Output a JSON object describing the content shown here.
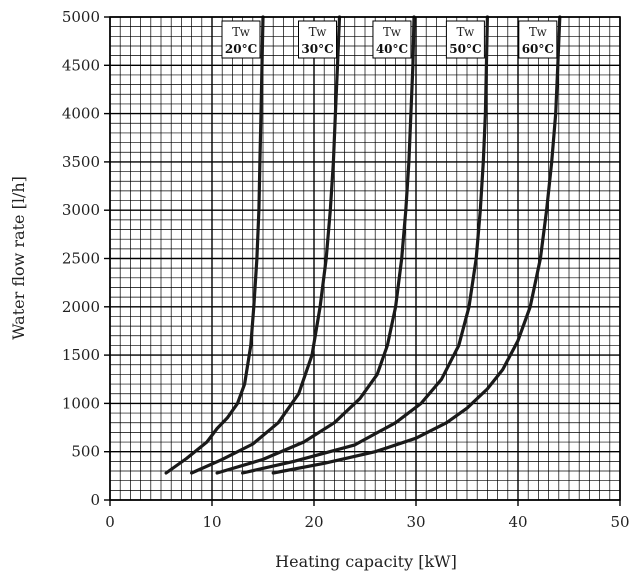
{
  "chart_data": {
    "type": "line",
    "xlabel": "Heating capacity [kW]",
    "ylabel": "Water flow rate [l/h]",
    "xlim": [
      0,
      50
    ],
    "ylim": [
      0,
      5000
    ],
    "x_ticks": [
      0,
      10,
      20,
      30,
      40,
      50
    ],
    "y_ticks": [
      0,
      500,
      1000,
      1500,
      2000,
      2500,
      3000,
      3500,
      4000,
      4500,
      5000
    ],
    "x_tick_labels": [
      "0",
      "10",
      "20",
      "30",
      "40",
      "50"
    ],
    "y_tick_labels": [
      "0",
      "500",
      "1000",
      "1500",
      "2000",
      "2500",
      "3000",
      "3500",
      "4000",
      "4500",
      "5000"
    ],
    "grid": true,
    "legend": "top, labels above each curve",
    "series": [
      {
        "label_top": "Tw",
        "label_bottom": "20°C",
        "points": [
          [
            5.5,
            280
          ],
          [
            7.5,
            430
          ],
          [
            9.5,
            600
          ],
          [
            10.5,
            740
          ],
          [
            11.5,
            850
          ],
          [
            12.5,
            1000
          ],
          [
            13.2,
            1200
          ],
          [
            13.8,
            1600
          ],
          [
            14.1,
            2000
          ],
          [
            14.4,
            2500
          ],
          [
            14.6,
            3000
          ],
          [
            14.7,
            3500
          ],
          [
            14.8,
            4000
          ],
          [
            14.9,
            4500
          ],
          [
            15.0,
            5000
          ]
        ]
      },
      {
        "label_top": "Tw",
        "label_bottom": "30°C",
        "points": [
          [
            8.0,
            280
          ],
          [
            11.0,
            420
          ],
          [
            14.0,
            580
          ],
          [
            16.5,
            800
          ],
          [
            18.5,
            1100
          ],
          [
            19.8,
            1500
          ],
          [
            20.6,
            2000
          ],
          [
            21.2,
            2500
          ],
          [
            21.6,
            3000
          ],
          [
            21.9,
            3500
          ],
          [
            22.1,
            4000
          ],
          [
            22.3,
            4500
          ],
          [
            22.5,
            5000
          ]
        ]
      },
      {
        "label_top": "Tw",
        "label_bottom": "40°C",
        "points": [
          [
            10.5,
            280
          ],
          [
            15.0,
            420
          ],
          [
            19.0,
            600
          ],
          [
            22.0,
            800
          ],
          [
            24.5,
            1050
          ],
          [
            26.2,
            1300
          ],
          [
            27.2,
            1600
          ],
          [
            28.0,
            2000
          ],
          [
            28.6,
            2500
          ],
          [
            29.0,
            3000
          ],
          [
            29.3,
            3500
          ],
          [
            29.5,
            4000
          ],
          [
            29.7,
            4500
          ],
          [
            29.8,
            5000
          ]
        ]
      },
      {
        "label_top": "Tw",
        "label_bottom": "50°C",
        "points": [
          [
            13.0,
            280
          ],
          [
            18.0,
            400
          ],
          [
            24.0,
            570
          ],
          [
            28.0,
            800
          ],
          [
            30.5,
            1000
          ],
          [
            32.5,
            1250
          ],
          [
            34.2,
            1600
          ],
          [
            35.2,
            2000
          ],
          [
            35.9,
            2500
          ],
          [
            36.3,
            3000
          ],
          [
            36.6,
            3500
          ],
          [
            36.8,
            4000
          ],
          [
            36.9,
            4500
          ],
          [
            37.0,
            5000
          ]
        ]
      },
      {
        "label_top": "Tw",
        "label_bottom": "60°C",
        "points": [
          [
            16.0,
            280
          ],
          [
            21.0,
            380
          ],
          [
            26.0,
            500
          ],
          [
            30.0,
            640
          ],
          [
            33.0,
            800
          ],
          [
            35.0,
            950
          ],
          [
            37.0,
            1150
          ],
          [
            38.5,
            1350
          ],
          [
            40.0,
            1650
          ],
          [
            41.2,
            2000
          ],
          [
            42.2,
            2500
          ],
          [
            42.8,
            3000
          ],
          [
            43.3,
            3500
          ],
          [
            43.7,
            4000
          ],
          [
            43.9,
            4500
          ],
          [
            44.1,
            5000
          ]
        ]
      }
    ]
  }
}
